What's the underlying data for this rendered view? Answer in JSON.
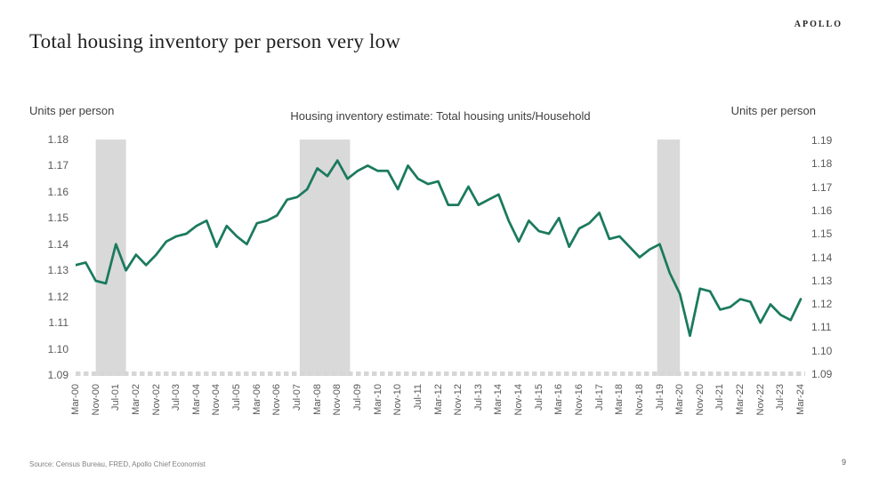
{
  "header": {
    "title": "Total housing inventory per person very low",
    "logo": "APOLLO"
  },
  "footer": {
    "source": "Source: Census Bureau, FRED, Apollo Chief Economist",
    "page": "9"
  },
  "chart_data": {
    "type": "line",
    "title": "Housing inventory estimate: Total housing units/Household",
    "left_axis_label": "Units per person",
    "right_axis_label": "Units per person",
    "left_axis_ticks": [
      "1.18",
      "1.17",
      "1.16",
      "1.15",
      "1.14",
      "1.13",
      "1.12",
      "1.11",
      "1.10",
      "1.09"
    ],
    "right_axis_ticks": [
      "1.19",
      "1.18",
      "1.17",
      "1.16",
      "1.15",
      "1.14",
      "1.13",
      "1.12",
      "1.11",
      "1.10",
      "1.09"
    ],
    "left_ylim": [
      1.09,
      1.18
    ],
    "right_ylim": [
      1.09,
      1.19
    ],
    "grid": false,
    "legend": "none",
    "line_color": "#1B7A5E",
    "band_color": "#D9D9D9",
    "tick_color": "#D6D6D6",
    "x": [
      "Mar-00",
      "Jul-00",
      "Nov-00",
      "Mar-01",
      "Jul-01",
      "Nov-01",
      "Mar-02",
      "Jul-02",
      "Nov-02",
      "Mar-03",
      "Jul-03",
      "Nov-03",
      "Mar-04",
      "Jul-04",
      "Nov-04",
      "Mar-05",
      "Jul-05",
      "Nov-05",
      "Mar-06",
      "Jul-06",
      "Nov-06",
      "Mar-07",
      "Jul-07",
      "Nov-07",
      "Mar-08",
      "Jul-08",
      "Nov-08",
      "Mar-09",
      "Jul-09",
      "Nov-09",
      "Mar-10",
      "Jul-10",
      "Nov-10",
      "Mar-11",
      "Jul-11",
      "Nov-11",
      "Mar-12",
      "Jul-12",
      "Nov-12",
      "Mar-13",
      "Jul-13",
      "Nov-13",
      "Mar-14",
      "Jul-14",
      "Nov-14",
      "Mar-15",
      "Jul-15",
      "Nov-15",
      "Mar-16",
      "Jul-16",
      "Nov-16",
      "Mar-17",
      "Jul-17",
      "Nov-17",
      "Mar-18",
      "Jul-18",
      "Nov-18",
      "Mar-19",
      "Jul-19",
      "Nov-19",
      "Mar-20",
      "Jul-20",
      "Nov-20",
      "Mar-21",
      "Jul-21",
      "Nov-21",
      "Mar-22",
      "Jul-22",
      "Nov-22",
      "Mar-23",
      "Jul-23",
      "Nov-23",
      "Mar-24"
    ],
    "values": [
      1.132,
      1.133,
      1.126,
      1.125,
      1.14,
      1.13,
      1.136,
      1.132,
      1.136,
      1.141,
      1.143,
      1.144,
      1.147,
      1.149,
      1.139,
      1.147,
      1.143,
      1.14,
      1.148,
      1.149,
      1.151,
      1.157,
      1.158,
      1.161,
      1.169,
      1.166,
      1.172,
      1.165,
      1.168,
      1.17,
      1.168,
      1.168,
      1.161,
      1.17,
      1.165,
      1.163,
      1.164,
      1.155,
      1.155,
      1.162,
      1.155,
      1.157,
      1.159,
      1.149,
      1.141,
      1.149,
      1.145,
      1.144,
      1.15,
      1.139,
      1.146,
      1.148,
      1.152,
      1.142,
      1.143,
      1.139,
      1.135,
      1.138,
      1.14,
      1.129,
      1.121,
      1.105,
      1.123,
      1.122,
      1.115,
      1.116,
      1.119,
      1.118,
      1.11,
      1.117,
      1.113,
      1.111,
      1.119
    ],
    "x_tick_labels": [
      "Mar-00",
      "Nov-00",
      "Jul-01",
      "Mar-02",
      "Nov-02",
      "Jul-03",
      "Mar-04",
      "Nov-04",
      "Jul-05",
      "Mar-06",
      "Nov-06",
      "Jul-07",
      "Mar-08",
      "Nov-08",
      "Jul-09",
      "Mar-10",
      "Nov-10",
      "Jul-11",
      "Mar-12",
      "Nov-12",
      "Jul-13",
      "Mar-14",
      "Nov-14",
      "Jul-15",
      "Mar-16",
      "Nov-16",
      "Jul-17",
      "Mar-18",
      "Nov-18",
      "Jul-19",
      "Mar-20",
      "Nov-20",
      "Jul-21",
      "Mar-22",
      "Nov-22",
      "Jul-23",
      "Mar-24"
    ],
    "recession_bands": [
      {
        "from": "Nov-00",
        "to": "Nov-01"
      },
      {
        "from": "Aug-07",
        "to": "Apr-09"
      },
      {
        "from": "Jun-19",
        "to": "Mar-20"
      }
    ]
  }
}
